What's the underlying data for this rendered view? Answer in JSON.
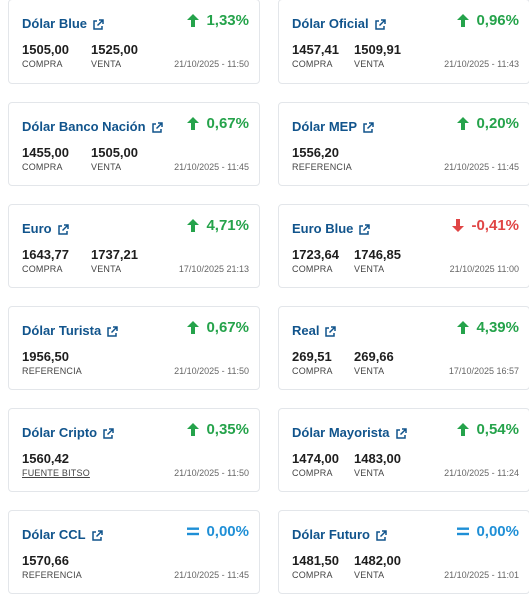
{
  "colors": {
    "title": "#11548c",
    "up": "#25a34b",
    "down": "#e04545",
    "flat": "#1f8fd6"
  },
  "cards": [
    {
      "id": "dolar-blue",
      "title": "Dólar Blue",
      "trend": "up",
      "change": "1,33%",
      "values": [
        {
          "value": "1505,00",
          "label": "COMPRA"
        },
        {
          "value": "1525,00",
          "label": "VENTA"
        }
      ],
      "timestamp": "21/10/2025 - 11:50"
    },
    {
      "id": "dolar-oficial",
      "title": "Dólar Oficial",
      "trend": "up",
      "change": "0,96%",
      "values": [
        {
          "value": "1457,41",
          "label": "COMPRA"
        },
        {
          "value": "1509,91",
          "label": "VENTA"
        }
      ],
      "timestamp": "21/10/2025 - 11:43"
    },
    {
      "id": "dolar-banco-nacion",
      "title": "Dólar Banco Nación",
      "trend": "up",
      "change": "0,67%",
      "values": [
        {
          "value": "1455,00",
          "label": "COMPRA"
        },
        {
          "value": "1505,00",
          "label": "VENTA"
        }
      ],
      "timestamp": "21/10/2025 - 11:45"
    },
    {
      "id": "dolar-mep",
      "title": "Dólar MEP",
      "trend": "up",
      "change": "0,20%",
      "values": [
        {
          "value": "1556,20",
          "label": "REFERENCIA"
        }
      ],
      "timestamp": "21/10/2025 - 11:45"
    },
    {
      "id": "euro",
      "title": "Euro",
      "trend": "up",
      "change": "4,71%",
      "values": [
        {
          "value": "1643,77",
          "label": "COMPRA"
        },
        {
          "value": "1737,21",
          "label": "VENTA"
        }
      ],
      "timestamp": "17/10/2025 21:13"
    },
    {
      "id": "euro-blue",
      "title": "Euro Blue",
      "trend": "down",
      "change": "-0,41%",
      "values": [
        {
          "value": "1723,64",
          "label": "COMPRA"
        },
        {
          "value": "1746,85",
          "label": "VENTA"
        }
      ],
      "timestamp": "21/10/2025 11:00"
    },
    {
      "id": "dolar-turista",
      "title": "Dólar Turista",
      "trend": "up",
      "change": "0,67%",
      "values": [
        {
          "value": "1956,50",
          "label": "REFERENCIA"
        }
      ],
      "timestamp": "21/10/2025 - 11:50"
    },
    {
      "id": "real",
      "title": "Real",
      "trend": "up",
      "change": "4,39%",
      "values": [
        {
          "value": "269,51",
          "label": "COMPRA"
        },
        {
          "value": "269,66",
          "label": "VENTA"
        }
      ],
      "timestamp": "17/10/2025 16:57"
    },
    {
      "id": "dolar-cripto",
      "title": "Dólar Cripto",
      "trend": "up",
      "change": "0,35%",
      "values": [
        {
          "value": "1560,42",
          "label": "FUENTE BITSO",
          "link": true
        }
      ],
      "timestamp": "21/10/2025 - 11:50"
    },
    {
      "id": "dolar-mayorista",
      "title": "Dólar Mayorista",
      "trend": "up",
      "change": "0,54%",
      "values": [
        {
          "value": "1474,00",
          "label": "COMPRA"
        },
        {
          "value": "1483,00",
          "label": "VENTA"
        }
      ],
      "timestamp": "21/10/2025 - 11:24"
    },
    {
      "id": "dolar-ccl",
      "title": "Dólar CCL",
      "trend": "flat",
      "change": "0,00%",
      "values": [
        {
          "value": "1570,66",
          "label": "REFERENCIA"
        }
      ],
      "timestamp": "21/10/2025 - 11:45"
    },
    {
      "id": "dolar-futuro",
      "title": "Dólar Futuro",
      "trend": "flat",
      "change": "0,00%",
      "values": [
        {
          "value": "1481,50",
          "label": "COMPRA"
        },
        {
          "value": "1482,00",
          "label": "VENTA"
        }
      ],
      "timestamp": "21/10/2025 - 11:01"
    }
  ]
}
